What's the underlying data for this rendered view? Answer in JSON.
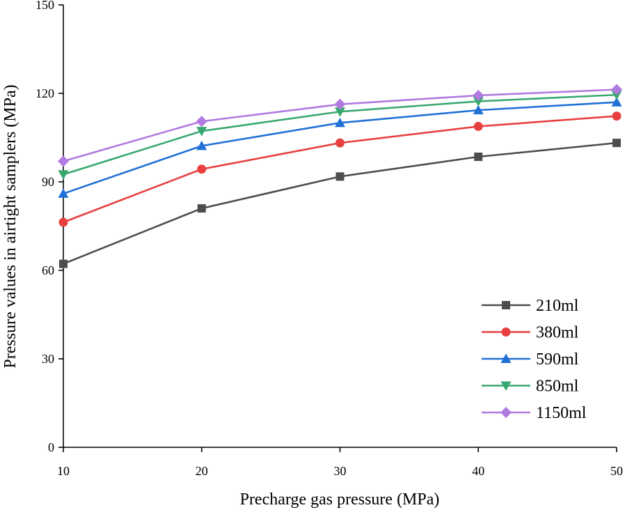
{
  "chart_data": {
    "type": "line",
    "title": "",
    "xlabel": "Precharge gas pressure (MPa)",
    "ylabel": "Pressure values in airtight samplers (MPa)",
    "x": [
      10,
      20,
      30,
      40,
      50
    ],
    "xlim": [
      10,
      50
    ],
    "ylim": [
      0,
      150
    ],
    "xticks": [
      "10",
      "20",
      "30",
      "40",
      "50"
    ],
    "yticks": [
      "0",
      "30",
      "60",
      "90",
      "120",
      "150"
    ],
    "grid": false,
    "legend_position": "bottom-right",
    "series": [
      {
        "name": "210ml",
        "values": [
          62.2,
          81.0,
          91.8,
          98.5,
          103.2
        ],
        "color": "#4d4d4d",
        "marker": "square"
      },
      {
        "name": "380ml",
        "values": [
          76.3,
          94.3,
          103.2,
          108.8,
          112.3
        ],
        "color": "#e84040",
        "marker": "circle"
      },
      {
        "name": "590ml",
        "values": [
          86.0,
          102.2,
          110.0,
          114.3,
          117.0
        ],
        "color": "#2070d8",
        "marker": "triangle-up"
      },
      {
        "name": "850ml",
        "values": [
          92.5,
          107.2,
          113.8,
          117.3,
          119.5
        ],
        "color": "#38a870",
        "marker": "triangle-down"
      },
      {
        "name": "1150ml",
        "values": [
          97.0,
          110.5,
          116.3,
          119.3,
          121.3
        ],
        "color": "#b07ae0",
        "marker": "diamond"
      }
    ]
  }
}
